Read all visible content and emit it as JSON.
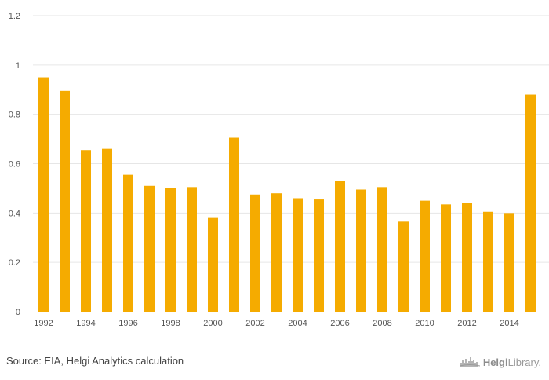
{
  "chart_data": {
    "type": "bar",
    "categories": [
      "1992",
      "1993",
      "1994",
      "1995",
      "1996",
      "1997",
      "1998",
      "1999",
      "2000",
      "2001",
      "2002",
      "2003",
      "2004",
      "2005",
      "2006",
      "2007",
      "2008",
      "2009",
      "2010",
      "2011",
      "2012",
      "2013",
      "2014",
      "2015"
    ],
    "x_tick_labels": [
      "1992",
      "1994",
      "1996",
      "1998",
      "2000",
      "2002",
      "2004",
      "2006",
      "2008",
      "2010",
      "2012",
      "2014"
    ],
    "values": [
      0.95,
      0.895,
      0.655,
      0.66,
      0.555,
      0.51,
      0.5,
      0.505,
      0.38,
      0.705,
      0.475,
      0.48,
      0.46,
      0.455,
      0.53,
      0.495,
      0.505,
      0.365,
      0.45,
      0.435,
      0.44,
      0.405,
      0.4,
      0.88
    ],
    "ylim": [
      0,
      1.2
    ],
    "y_ticks": [
      0,
      0.2,
      0.4,
      0.6,
      0.8,
      1,
      1.2
    ],
    "y_tick_labels": [
      "0",
      "0.2",
      "0.4",
      "0.6",
      "0.8",
      "1",
      "1.2"
    ],
    "grid": true,
    "bar_color": "#f5ab00",
    "title": "",
    "xlabel": "",
    "ylabel": ""
  },
  "footer": {
    "source": "Source: EIA, Helgi Analytics calculation",
    "brand_prefix": "Helgi",
    "brand_suffix": "Library."
  },
  "colors": {
    "grid": "#e6e6e6",
    "axis": "#cccccc",
    "text": "#555555"
  }
}
